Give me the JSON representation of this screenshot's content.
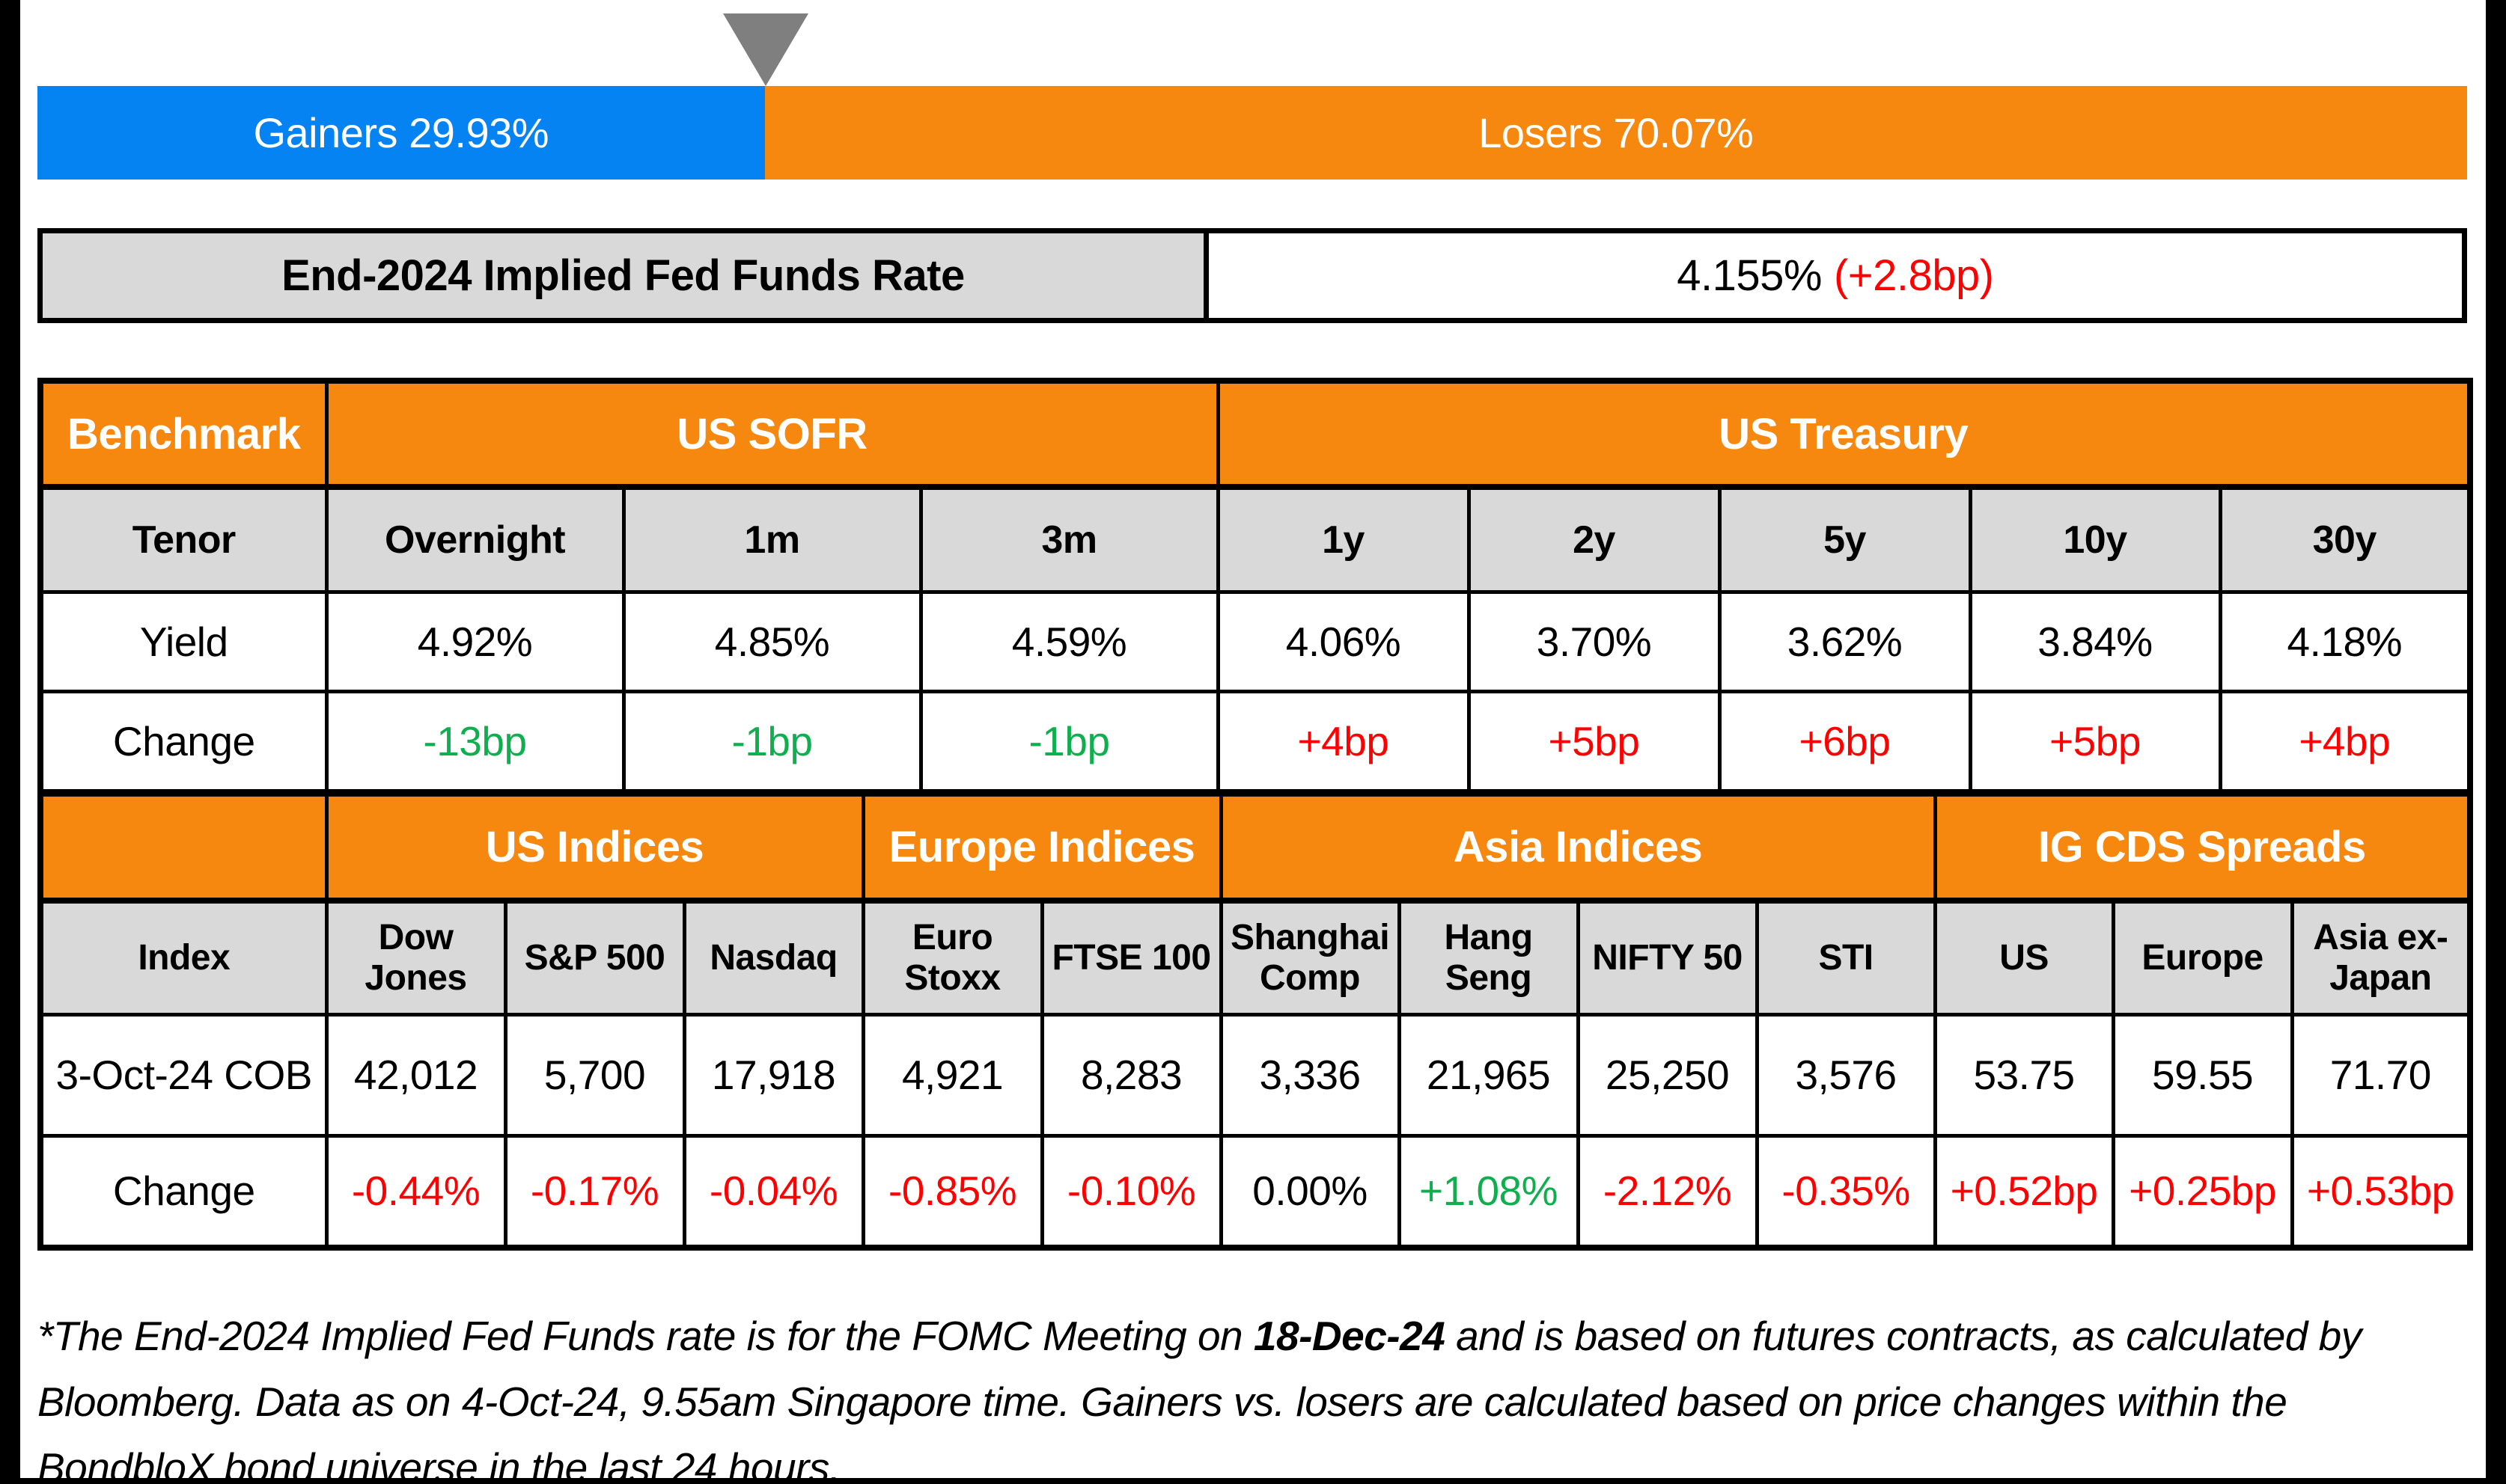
{
  "gainers_losers": {
    "gainers_label": "Gainers 29.93%",
    "losers_label": "Losers 70.07%",
    "gainers_pct": 29.93,
    "losers_pct": 70.07
  },
  "fed_funds": {
    "label": "End-2024 Implied Fed Funds Rate",
    "value": "4.155%",
    "change": "(+2.8bp)"
  },
  "benchmark_table": {
    "corner_label": "Benchmark",
    "group_sofr": "US SOFR",
    "group_treasury": "US Treasury",
    "tenor_label": "Tenor",
    "yield_label": "Yield",
    "change_label": "Change",
    "tenors": [
      "Overnight",
      "1m",
      "3m",
      "1y",
      "2y",
      "5y",
      "10y",
      "30y"
    ],
    "yields": [
      "4.92%",
      "4.85%",
      "4.59%",
      "4.06%",
      "3.70%",
      "3.62%",
      "3.84%",
      "4.18%"
    ],
    "changes": [
      "-13bp",
      "-1bp",
      "-1bp",
      "+4bp",
      "+5bp",
      "+6bp",
      "+5bp",
      "+4bp"
    ],
    "change_colors": [
      "green",
      "green",
      "green",
      "red",
      "red",
      "red",
      "red",
      "red"
    ]
  },
  "indices_table": {
    "corner_label": "",
    "group_us": "US Indices",
    "group_europe": "Europe Indices",
    "group_asia": "Asia Indices",
    "group_cds": "IG CDS Spreads",
    "index_label": "Index",
    "cob_label": "3-Oct-24 COB",
    "change_label": "Change",
    "names": [
      "Dow Jones",
      "S&P 500",
      "Nasdaq",
      "Euro Stoxx",
      "FTSE 100",
      "Shanghai Comp",
      "Hang Seng",
      "NIFTY 50",
      "STI",
      "US",
      "Europe",
      "Asia ex-Japan"
    ],
    "cob": [
      "42,012",
      "5,700",
      "17,918",
      "4,921",
      "8,283",
      "3,336",
      "21,965",
      "25,250",
      "3,576",
      "53.75",
      "59.55",
      "71.70"
    ],
    "changes": [
      "-0.44%",
      "-0.17%",
      "-0.04%",
      "-0.85%",
      "-0.10%",
      "0.00%",
      "+1.08%",
      "-2.12%",
      "-0.35%",
      "+0.52bp",
      "+0.25bp",
      "+0.53bp"
    ],
    "change_colors": [
      "red",
      "red",
      "red",
      "red",
      "red",
      "black",
      "green",
      "red",
      "red",
      "red",
      "red",
      "red"
    ]
  },
  "footnote": {
    "part1": "*The End-2024 Implied Fed Funds rate is for the FOMC Meeting on ",
    "bold_date": "18-Dec-24",
    "part2": " and is based on futures contracts, as calculated by Bloomberg. Data as on 4-Oct-24, 9.55am Singapore time. Gainers vs. losers are calculated based on price changes within the BondbloX bond universe in the last 24 hours."
  },
  "colors": {
    "gainers_blue": "#0583F2",
    "losers_orange": "#F6870F",
    "header_orange": "#F6870F",
    "positive_green": "#0FAE4F",
    "negative_red": "#FF0000",
    "gray_cell": "#D9D9D9",
    "triangle_gray": "#7F7F7F"
  }
}
